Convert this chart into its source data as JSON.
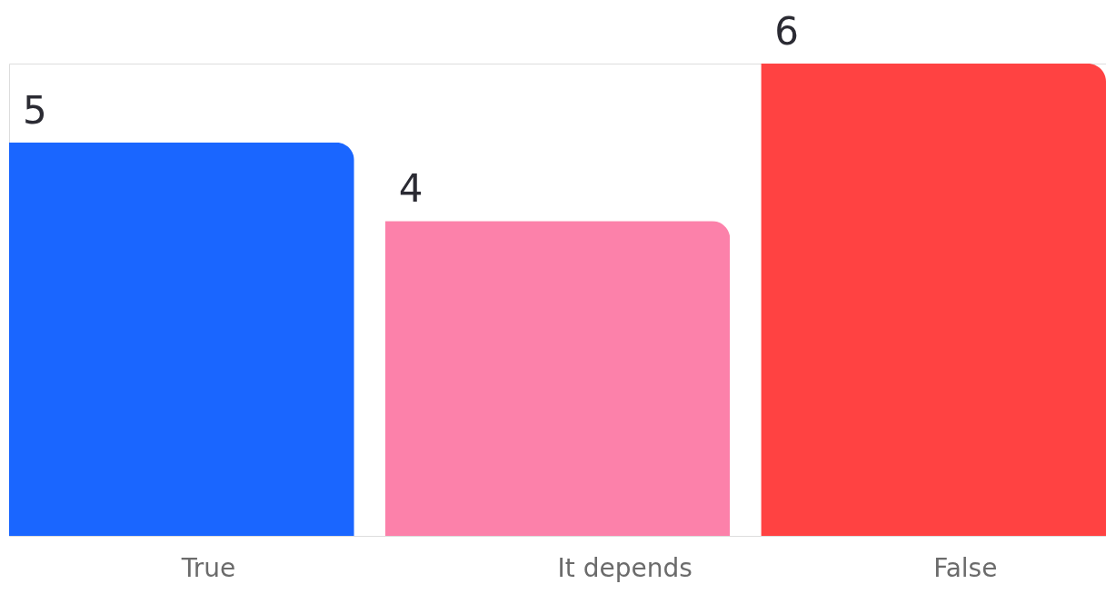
{
  "chart_data": {
    "type": "bar",
    "categories": [
      "True",
      "It depends",
      "False"
    ],
    "values": [
      5,
      4,
      6
    ],
    "colors": [
      "#1a66ff",
      "#fc81aa",
      "#ff4242"
    ],
    "data_labels": true
  }
}
